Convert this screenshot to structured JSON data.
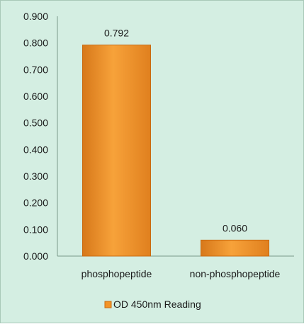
{
  "chart_data": {
    "type": "bar",
    "categories": [
      "phosphopeptide",
      "non-phosphopeptide"
    ],
    "series": [
      {
        "name": "OD 450nm Reading",
        "values": [
          0.792,
          0.06
        ],
        "data_labels": [
          "0.792",
          "0.060"
        ]
      }
    ],
    "ylim": [
      0,
      0.9
    ],
    "yticks": [
      0.0,
      0.1,
      0.2,
      0.3,
      0.4,
      0.5,
      0.6,
      0.7,
      0.8,
      0.9
    ],
    "ytick_labels": [
      "0.000",
      "0.100",
      "0.200",
      "0.300",
      "0.400",
      "0.500",
      "0.600",
      "0.700",
      "0.800",
      "0.900"
    ],
    "title": "",
    "xlabel": "",
    "ylabel": "",
    "grid": false,
    "legend_position": "bottom",
    "colors": {
      "bar_fill": "#f39426",
      "bar_edge": "#c96a10",
      "background": "#d4eee2",
      "axis": "#7a9a8a"
    }
  }
}
